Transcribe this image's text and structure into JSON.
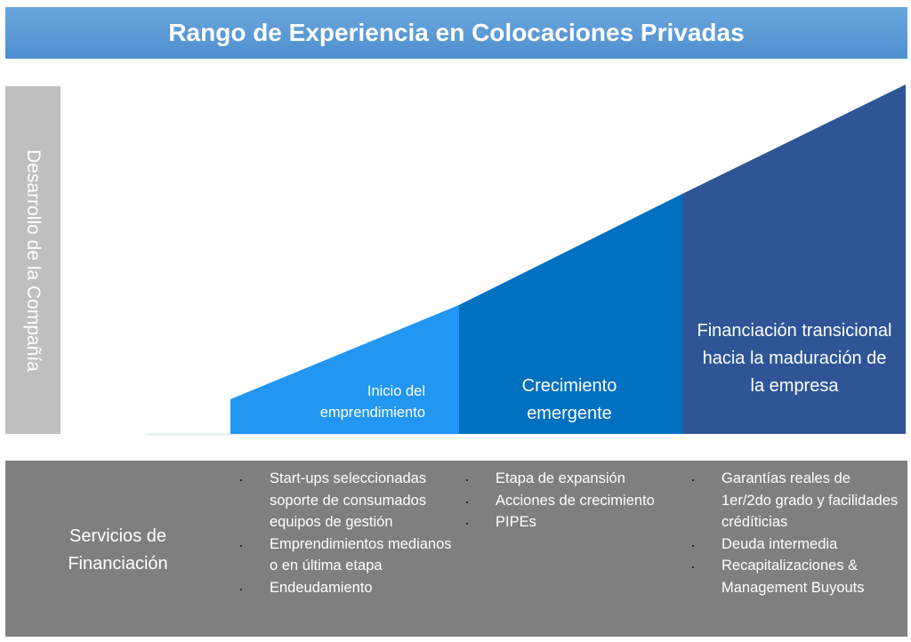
{
  "title": "Rango de Experiencia en Colocaciones Privadas",
  "axis_label": "Desarrollo de la Compañía",
  "stages": [
    {
      "label": "Inicio del emprendimiento",
      "color": "#2196f3"
    },
    {
      "label": "Crecimiento emergente",
      "color": "#0070c0"
    },
    {
      "label": "Financiación transicional hacia la maduración de la empresa",
      "color": "#2f5597"
    }
  ],
  "services": {
    "label": "Servicios de Financiación",
    "columns": [
      [
        "Start-ups seleccionadas soporte de consumados equipos de gestión",
        "Emprendimientos medianos o en última etapa",
        "Endeudamiento"
      ],
      [
        "Etapa de expansión",
        "Acciones de crecimiento",
        "PIPEs"
      ],
      [
        "Garantías reales de 1er/2do grado y facilidades crédíticias",
        "Deuda intermedia",
        "Recapitalizaciones & Management Buyouts"
      ]
    ]
  }
}
